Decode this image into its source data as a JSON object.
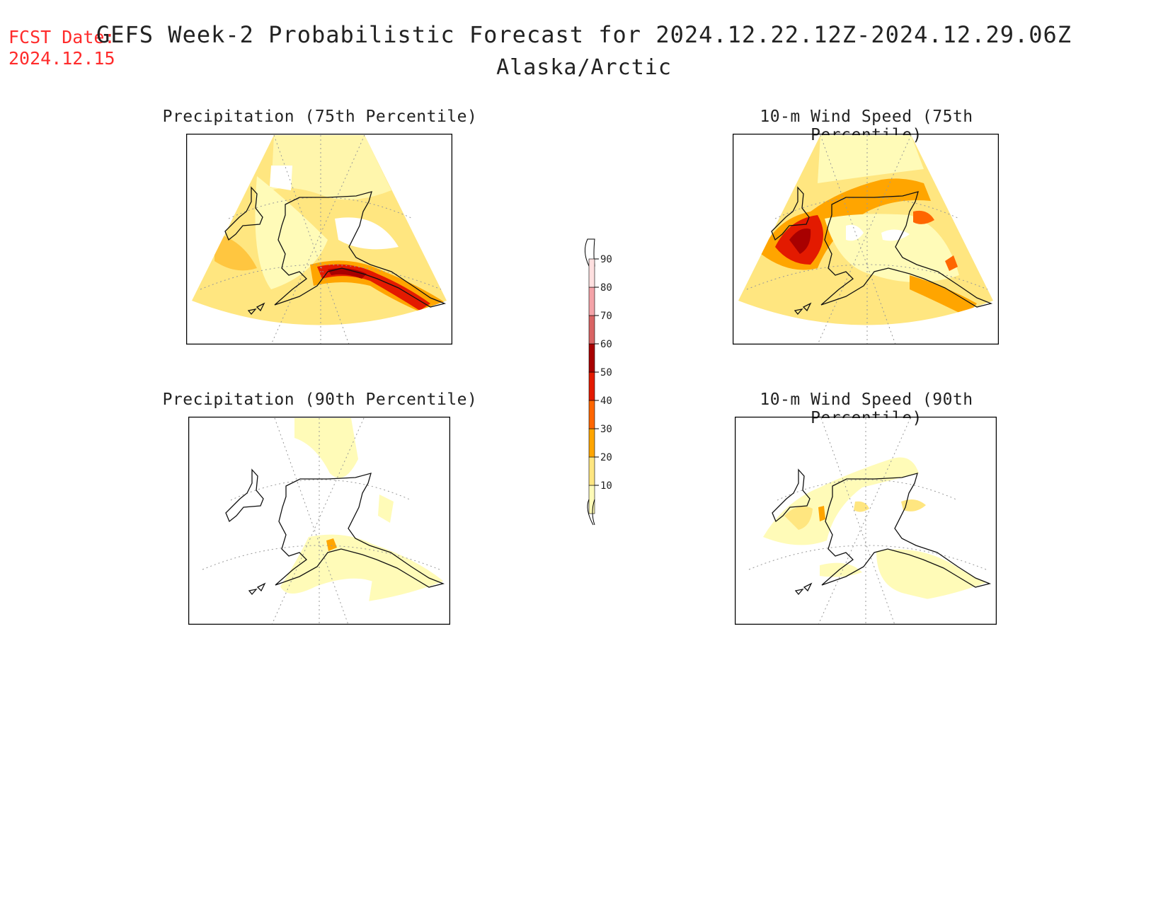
{
  "header": {
    "fcst_label": "FCST Date:",
    "fcst_date": "2024.12.15",
    "title": "GEFS Week-2 Probabilistic Forecast for 2024.12.22.12Z-2024.12.29.06Z",
    "region": "Alaska/Arctic"
  },
  "panels": [
    {
      "id": "precip75",
      "title": "Precipitation (75th Percentile)"
    },
    {
      "id": "wind75",
      "title": "10-m Wind Speed (75th Percentile)"
    },
    {
      "id": "precip90",
      "title": "Precipitation (90th Percentile)"
    },
    {
      "id": "wind90",
      "title": "10-m Wind Speed (90th Percentile)"
    }
  ],
  "colorbar": {
    "levels": [
      "10",
      "20",
      "30",
      "40",
      "50",
      "60",
      "70",
      "80",
      "90"
    ],
    "colors": [
      "#fffbb8",
      "#ffe680",
      "#ffa500",
      "#ff6600",
      "#e31a00",
      "#a80000",
      "#d96464",
      "#f4a3a8",
      "#ffe0e0"
    ]
  }
}
